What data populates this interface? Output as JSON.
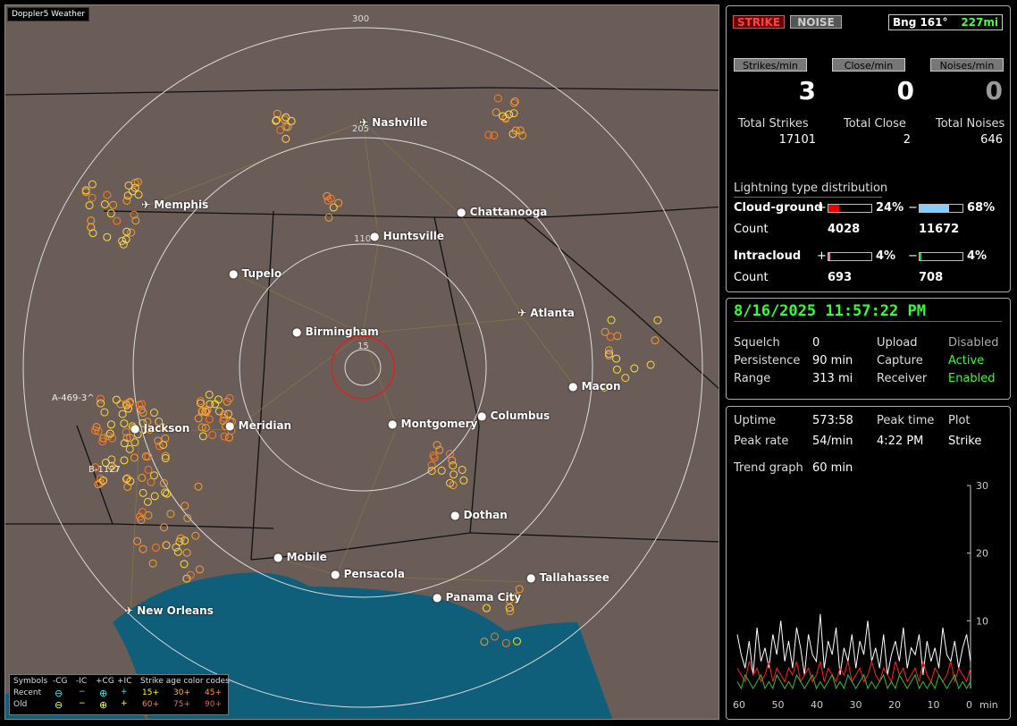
{
  "map": {
    "brand": "Doppler5 Weather",
    "range_labels": [
      "300",
      "205",
      "110",
      "15"
    ],
    "cities": [
      {
        "name": "Nashville",
        "airport": true
      },
      {
        "name": "Memphis",
        "airport": true
      },
      {
        "name": "Chattanooga",
        "airport": false
      },
      {
        "name": "Huntsville",
        "airport": false
      },
      {
        "name": "Tupelo",
        "airport": false
      },
      {
        "name": "Atlanta",
        "airport": true
      },
      {
        "name": "Birmingham",
        "airport": false
      },
      {
        "name": "Macon",
        "airport": false
      },
      {
        "name": "Jackson",
        "airport": false
      },
      {
        "name": "Meridian",
        "airport": false
      },
      {
        "name": "Montgomery",
        "airport": false
      },
      {
        "name": "Columbus",
        "airport": false
      },
      {
        "name": "Dothan",
        "airport": false
      },
      {
        "name": "Mobile",
        "airport": false
      },
      {
        "name": "Pensacola",
        "airport": false
      },
      {
        "name": "Tallahassee",
        "airport": false
      },
      {
        "name": "Panama City",
        "airport": false
      },
      {
        "name": "New Orleans",
        "airport": true
      }
    ],
    "markers": [
      "A-469-3^",
      "B-1127"
    ],
    "legend": {
      "symbols_label": "Symbols",
      "col_cg_neg": "-CG",
      "col_ic_neg": "-IC",
      "col_cg_pos": "+CG",
      "col_ic_pos": "+IC",
      "recent_label": "Recent",
      "old_label": "Old",
      "age_label": "Strike age color codes",
      "ages_recent": [
        "15+",
        "30+",
        "45+"
      ],
      "ages_old": [
        "60+",
        "75+",
        "90+"
      ]
    }
  },
  "top": {
    "strike_btn": "STRIKE",
    "noise_btn": "NOISE",
    "bearing_label": "Bng 161°",
    "distance": "227mi",
    "rate_buttons": [
      "Strikes/min",
      "Close/min",
      "Noises/min"
    ],
    "rates": [
      "3",
      "0",
      "0"
    ],
    "totals_labels": [
      "Total Strikes",
      "Total Close",
      "Total Noises"
    ],
    "totals": [
      "17101",
      "2",
      "646"
    ],
    "dist_title": "Lightning type distribution",
    "cg_label": "Cloud-ground",
    "ic_label": "Intracloud",
    "count_label": "Count",
    "cg_pos_pct": "24%",
    "cg_neg_pct": "68%",
    "cg_pos_count": "4028",
    "cg_neg_count": "11672",
    "ic_pos_pct": "4%",
    "ic_neg_pct": "4%",
    "ic_pos_count": "693",
    "ic_neg_count": "708",
    "plus": "+",
    "minus": "−"
  },
  "status": {
    "datetime": "8/16/2025 11:57:22 PM",
    "squelch_label": "Squelch",
    "squelch": "0",
    "persistence_label": "Persistence",
    "persistence": "90 min",
    "range_label": "Range",
    "range": "313 mi",
    "upload_label": "Upload",
    "upload": "Disabled",
    "capture_label": "Capture",
    "capture": "Active",
    "receiver_label": "Receiver",
    "receiver": "Enabled"
  },
  "stats": {
    "uptime_label": "Uptime",
    "uptime": "573:58",
    "peak_time_label": "Peak time",
    "peak_time": "4:22 PM",
    "plot_label": "Plot",
    "plot": "Strike",
    "peak_rate_label": "Peak rate",
    "peak_rate": "54/min",
    "trend_label": "Trend graph",
    "trend": "60 min"
  },
  "chart_data": {
    "type": "line",
    "xlabel": "min",
    "x_ticks": [
      "60",
      "50",
      "40",
      "30",
      "20",
      "10",
      "0"
    ],
    "y_ticks": [
      "30",
      "20",
      "10"
    ],
    "ylim": [
      0,
      30
    ],
    "xlim": [
      60,
      0
    ],
    "series": [
      {
        "color": "#ffffff",
        "values": [
          8,
          5,
          3,
          7,
          2,
          9,
          4,
          6,
          3,
          8,
          5,
          10,
          4,
          7,
          3,
          9,
          6,
          2,
          8,
          5,
          4,
          11,
          3,
          7,
          5,
          9,
          2,
          6,
          4,
          8,
          3,
          7,
          5,
          10,
          4,
          6,
          3,
          8,
          2,
          5,
          7,
          4,
          9,
          3,
          6,
          5,
          8,
          2,
          7,
          4,
          6,
          3,
          9,
          5,
          4,
          7,
          3,
          6,
          8,
          4
        ]
      },
      {
        "color": "#ff2020",
        "values": [
          3,
          2,
          1,
          4,
          2,
          3,
          1,
          2,
          4,
          1,
          3,
          2,
          1,
          3,
          2,
          4,
          1,
          2,
          3,
          1,
          2,
          4,
          1,
          3,
          2,
          1,
          3,
          2,
          4,
          1,
          2,
          3,
          1,
          2,
          4,
          2,
          1,
          3,
          2,
          1,
          4,
          2,
          3,
          1,
          2,
          3,
          1,
          4,
          2,
          1,
          3,
          2,
          1,
          2,
          4,
          1,
          3,
          2,
          1,
          3
        ]
      },
      {
        "color": "#30c030",
        "values": [
          1,
          0,
          2,
          1,
          0,
          1,
          2,
          0,
          1,
          0,
          2,
          1,
          0,
          1,
          0,
          2,
          1,
          0,
          1,
          2,
          0,
          1,
          0,
          1,
          2,
          0,
          1,
          0,
          2,
          1,
          0,
          1,
          2,
          0,
          1,
          0,
          1,
          2,
          0,
          1,
          0,
          2,
          1,
          0,
          1,
          2,
          0,
          1,
          0,
          1,
          0,
          2,
          1,
          0,
          1,
          2,
          0,
          1,
          0,
          1
        ]
      }
    ]
  }
}
